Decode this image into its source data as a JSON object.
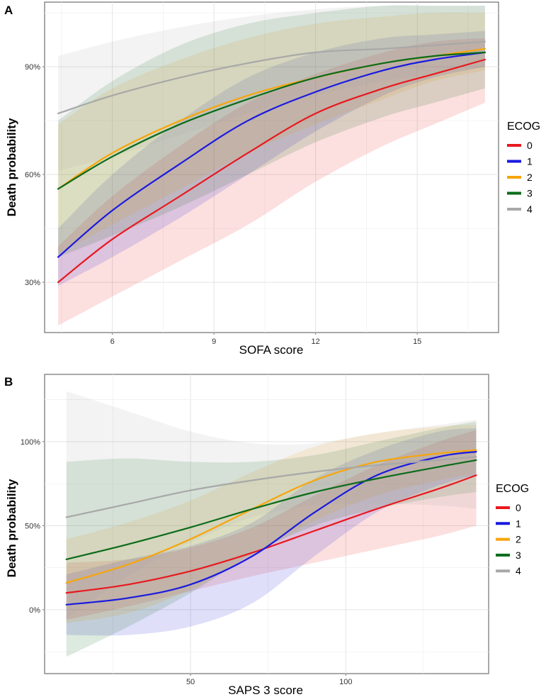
{
  "chart_data": [
    {
      "panel": "A",
      "type": "line",
      "xlabel": "SOFA score",
      "ylabel": "Death probability",
      "xlim": [
        4,
        17.4
      ],
      "ylim": [
        0.16,
        1.08
      ],
      "xticks": [
        6,
        9,
        12,
        15
      ],
      "xtick_labels": [
        "6",
        "9",
        "12",
        "15"
      ],
      "yticks": [
        0.3,
        0.6,
        0.9
      ],
      "ytick_labels": [
        "30%",
        "60%",
        "90%"
      ],
      "legend_title": "ECOG",
      "series": [
        {
          "name": "0",
          "color": "#e8191f",
          "x": [
            4.4,
            6,
            8,
            10,
            12,
            14,
            15.5,
            17
          ],
          "y": [
            0.3,
            0.42,
            0.54,
            0.66,
            0.77,
            0.84,
            0.88,
            0.92
          ],
          "lo": [
            0.18,
            0.26,
            0.36,
            0.46,
            0.58,
            0.68,
            0.74,
            0.8
          ],
          "hi": [
            0.4,
            0.54,
            0.68,
            0.8,
            0.88,
            0.94,
            0.97,
            0.98
          ]
        },
        {
          "name": "1",
          "color": "#1a1adf",
          "x": [
            4.4,
            6,
            8,
            10,
            12,
            14,
            15.5,
            17
          ],
          "y": [
            0.37,
            0.5,
            0.63,
            0.75,
            0.83,
            0.89,
            0.92,
            0.94
          ],
          "lo": [
            0.29,
            0.37,
            0.48,
            0.6,
            0.72,
            0.82,
            0.87,
            0.9
          ],
          "hi": [
            0.45,
            0.6,
            0.75,
            0.87,
            0.94,
            0.98,
            0.99,
            1.0
          ]
        },
        {
          "name": "2",
          "color": "#f7a50a",
          "x": [
            4.4,
            6,
            8,
            10,
            12,
            14,
            15.5,
            17
          ],
          "y": [
            0.56,
            0.66,
            0.75,
            0.82,
            0.87,
            0.91,
            0.93,
            0.95
          ],
          "lo": [
            0.38,
            0.46,
            0.56,
            0.66,
            0.74,
            0.81,
            0.86,
            0.89
          ],
          "hi": [
            0.74,
            0.84,
            0.92,
            0.98,
            1.02,
            1.04,
            1.05,
            1.05
          ]
        },
        {
          "name": "3",
          "color": "#0b6b1a",
          "x": [
            4.4,
            6,
            8,
            10,
            12,
            14,
            15.5,
            17
          ],
          "y": [
            0.56,
            0.65,
            0.74,
            0.81,
            0.87,
            0.91,
            0.93,
            0.94
          ],
          "lo": [
            0.37,
            0.43,
            0.51,
            0.6,
            0.69,
            0.76,
            0.8,
            0.84
          ],
          "hi": [
            0.75,
            0.86,
            0.96,
            1.02,
            1.05,
            1.07,
            1.07,
            1.07
          ]
        },
        {
          "name": "4",
          "color": "#a8a8a8",
          "x": [
            4.4,
            6,
            8,
            10,
            12,
            14,
            15.5,
            17
          ],
          "y": [
            0.77,
            0.82,
            0.87,
            0.91,
            0.94,
            0.95,
            0.96,
            0.97
          ],
          "lo": [
            0.61,
            0.65,
            0.71,
            0.77,
            0.82,
            0.86,
            0.88,
            0.9
          ],
          "hi": [
            0.93,
            0.97,
            1.01,
            1.04,
            1.06,
            1.07,
            1.07,
            1.07
          ]
        }
      ]
    },
    {
      "panel": "B",
      "type": "line",
      "xlabel": "SAPS 3 score",
      "ylabel": "Death probability",
      "xlim": [
        3,
        146
      ],
      "ylim": [
        -0.38,
        1.4
      ],
      "xticks": [
        50,
        100
      ],
      "xtick_labels": [
        "50",
        "100"
      ],
      "yticks": [
        0,
        0.5,
        1.0
      ],
      "ytick_labels": [
        "0%",
        "50%",
        "100%"
      ],
      "legend_title": "ECOG",
      "series": [
        {
          "name": "0",
          "color": "#e8191f",
          "x": [
            10,
            30,
            50,
            70,
            90,
            110,
            130,
            142
          ],
          "y": [
            0.1,
            0.15,
            0.23,
            0.34,
            0.47,
            0.6,
            0.72,
            0.8
          ],
          "lo": [
            -0.06,
            0.02,
            0.11,
            0.2,
            0.28,
            0.36,
            0.44,
            0.5
          ],
          "hi": [
            0.28,
            0.3,
            0.37,
            0.49,
            0.68,
            0.86,
            1.0,
            1.07
          ]
        },
        {
          "name": "1",
          "color": "#1a1adf",
          "x": [
            10,
            30,
            50,
            70,
            90,
            110,
            130,
            142
          ],
          "y": [
            0.03,
            0.07,
            0.15,
            0.32,
            0.58,
            0.8,
            0.91,
            0.94
          ],
          "lo": [
            -0.15,
            -0.15,
            -0.1,
            0.04,
            0.32,
            0.58,
            0.74,
            0.8
          ],
          "hi": [
            0.21,
            0.3,
            0.38,
            0.52,
            0.78,
            0.95,
            1.06,
            1.08
          ]
        },
        {
          "name": "2",
          "color": "#f7a50a",
          "x": [
            10,
            30,
            50,
            70,
            90,
            110,
            130,
            142
          ],
          "y": [
            0.16,
            0.27,
            0.42,
            0.6,
            0.77,
            0.88,
            0.93,
            0.95
          ],
          "lo": [
            -0.08,
            -0.02,
            0.12,
            0.33,
            0.53,
            0.68,
            0.77,
            0.81
          ],
          "hi": [
            0.42,
            0.52,
            0.65,
            0.82,
            0.97,
            1.05,
            1.09,
            1.1
          ]
        },
        {
          "name": "3",
          "color": "#0b6b1a",
          "x": [
            10,
            30,
            50,
            70,
            90,
            110,
            130,
            142
          ],
          "y": [
            0.3,
            0.39,
            0.49,
            0.6,
            0.7,
            0.78,
            0.85,
            0.89
          ],
          "lo": [
            -0.28,
            -0.1,
            0.1,
            0.33,
            0.5,
            0.6,
            0.67,
            0.7
          ],
          "hi": [
            0.88,
            0.9,
            0.88,
            0.88,
            0.92,
            1.0,
            1.08,
            1.12
          ]
        },
        {
          "name": "4",
          "color": "#a8a8a8",
          "x": [
            10,
            30,
            50,
            70,
            90,
            110,
            130,
            142
          ],
          "y": [
            0.55,
            0.63,
            0.71,
            0.77,
            0.82,
            0.86,
            0.89,
            0.91
          ],
          "lo": [
            -0.05,
            0.2,
            0.4,
            0.55,
            0.62,
            0.63,
            0.62,
            0.6
          ],
          "hi": [
            1.3,
            1.18,
            1.06,
            0.99,
            0.99,
            1.05,
            1.1,
            1.13
          ]
        }
      ]
    }
  ]
}
